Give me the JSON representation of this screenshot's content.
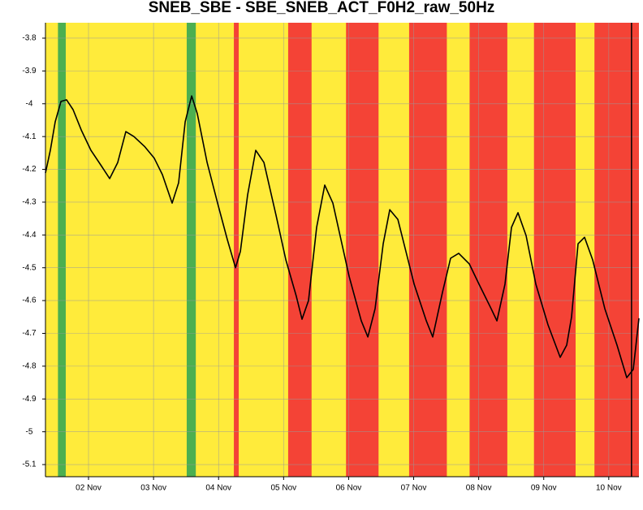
{
  "chart_data": {
    "type": "line",
    "title": "SNEB_SBE - SBE_SNEB_ACT_F0H2_raw_50Hz",
    "background_color": "#ffeb3b",
    "bands": [
      {
        "from": 1.53,
        "to": 1.65,
        "color": "#4caf50"
      },
      {
        "from": 3.51,
        "to": 3.65,
        "color": "#4caf50"
      },
      {
        "from": 4.235,
        "to": 4.31,
        "color": "#f44336"
      },
      {
        "from": 5.07,
        "to": 5.43,
        "color": "#f44336"
      },
      {
        "from": 5.96,
        "to": 6.46,
        "color": "#f44336"
      },
      {
        "from": 6.93,
        "to": 7.51,
        "color": "#f44336"
      },
      {
        "from": 7.86,
        "to": 8.44,
        "color": "#f44336"
      },
      {
        "from": 8.85,
        "to": 9.49,
        "color": "#f44336"
      },
      {
        "from": 9.78,
        "to": 10.464,
        "color": "#f44336"
      }
    ],
    "vlines": [
      10.35
    ],
    "x": [
      1.338,
      1.413,
      1.488,
      1.576,
      1.663,
      1.763,
      1.888,
      2.037,
      2.2,
      2.325,
      2.449,
      2.574,
      2.699,
      2.861,
      3.011,
      3.136,
      3.286,
      3.386,
      3.486,
      3.586,
      3.673,
      3.823,
      3.985,
      4.135,
      4.26,
      4.335,
      4.447,
      4.572,
      4.697,
      4.884,
      5.034,
      5.196,
      5.283,
      5.383,
      5.508,
      5.633,
      5.758,
      6.007,
      6.195,
      6.295,
      6.407,
      6.532,
      6.632,
      6.757,
      7.007,
      7.194,
      7.293,
      7.443,
      7.568,
      7.693,
      7.855,
      8.005,
      8.192,
      8.28,
      8.404,
      8.504,
      8.604,
      8.729,
      8.879,
      9.066,
      9.253,
      9.353,
      9.428,
      9.528,
      9.628,
      9.753,
      9.94,
      10.127,
      10.277,
      10.377,
      10.464
    ],
    "values": [
      -4.211,
      -4.142,
      -4.055,
      -3.993,
      -3.988,
      -4.018,
      -4.08,
      -4.142,
      -4.19,
      -4.228,
      -4.179,
      -4.085,
      -4.1,
      -4.13,
      -4.166,
      -4.216,
      -4.303,
      -4.241,
      -4.055,
      -3.976,
      -4.03,
      -4.179,
      -4.303,
      -4.414,
      -4.5,
      -4.45,
      -4.278,
      -4.142,
      -4.179,
      -4.34,
      -4.476,
      -4.587,
      -4.657,
      -4.6,
      -4.377,
      -4.248,
      -4.303,
      -4.526,
      -4.662,
      -4.711,
      -4.625,
      -4.427,
      -4.323,
      -4.353,
      -4.55,
      -4.662,
      -4.711,
      -4.575,
      -4.471,
      -4.456,
      -4.488,
      -4.55,
      -4.625,
      -4.662,
      -4.55,
      -4.377,
      -4.332,
      -4.402,
      -4.55,
      -4.674,
      -4.773,
      -4.736,
      -4.65,
      -4.427,
      -4.407,
      -4.476,
      -4.625,
      -4.736,
      -4.835,
      -4.81,
      -4.654
    ],
    "color": "#000000",
    "xlim": [
      1.338,
      10.464
    ],
    "xticks": [
      {
        "value": 2,
        "label": "02 Nov"
      },
      {
        "value": 3,
        "label": "03 Nov"
      },
      {
        "value": 4,
        "label": "04 Nov"
      },
      {
        "value": 5,
        "label": "05 Nov"
      },
      {
        "value": 6,
        "label": "06 Nov"
      },
      {
        "value": 7,
        "label": "07 Nov"
      },
      {
        "value": 8,
        "label": "08 Nov"
      },
      {
        "value": 9,
        "label": "09 Nov"
      },
      {
        "value": 10,
        "label": "10 Nov"
      }
    ],
    "ylim": [
      -5.137,
      -3.753
    ],
    "yticks": [
      -3.8,
      -3.9,
      -4,
      -4.1,
      -4.2,
      -4.3,
      -4.4,
      -4.5,
      -4.6,
      -4.7,
      -4.8,
      -4.9,
      -5,
      -5.1
    ],
    "grid": true
  }
}
